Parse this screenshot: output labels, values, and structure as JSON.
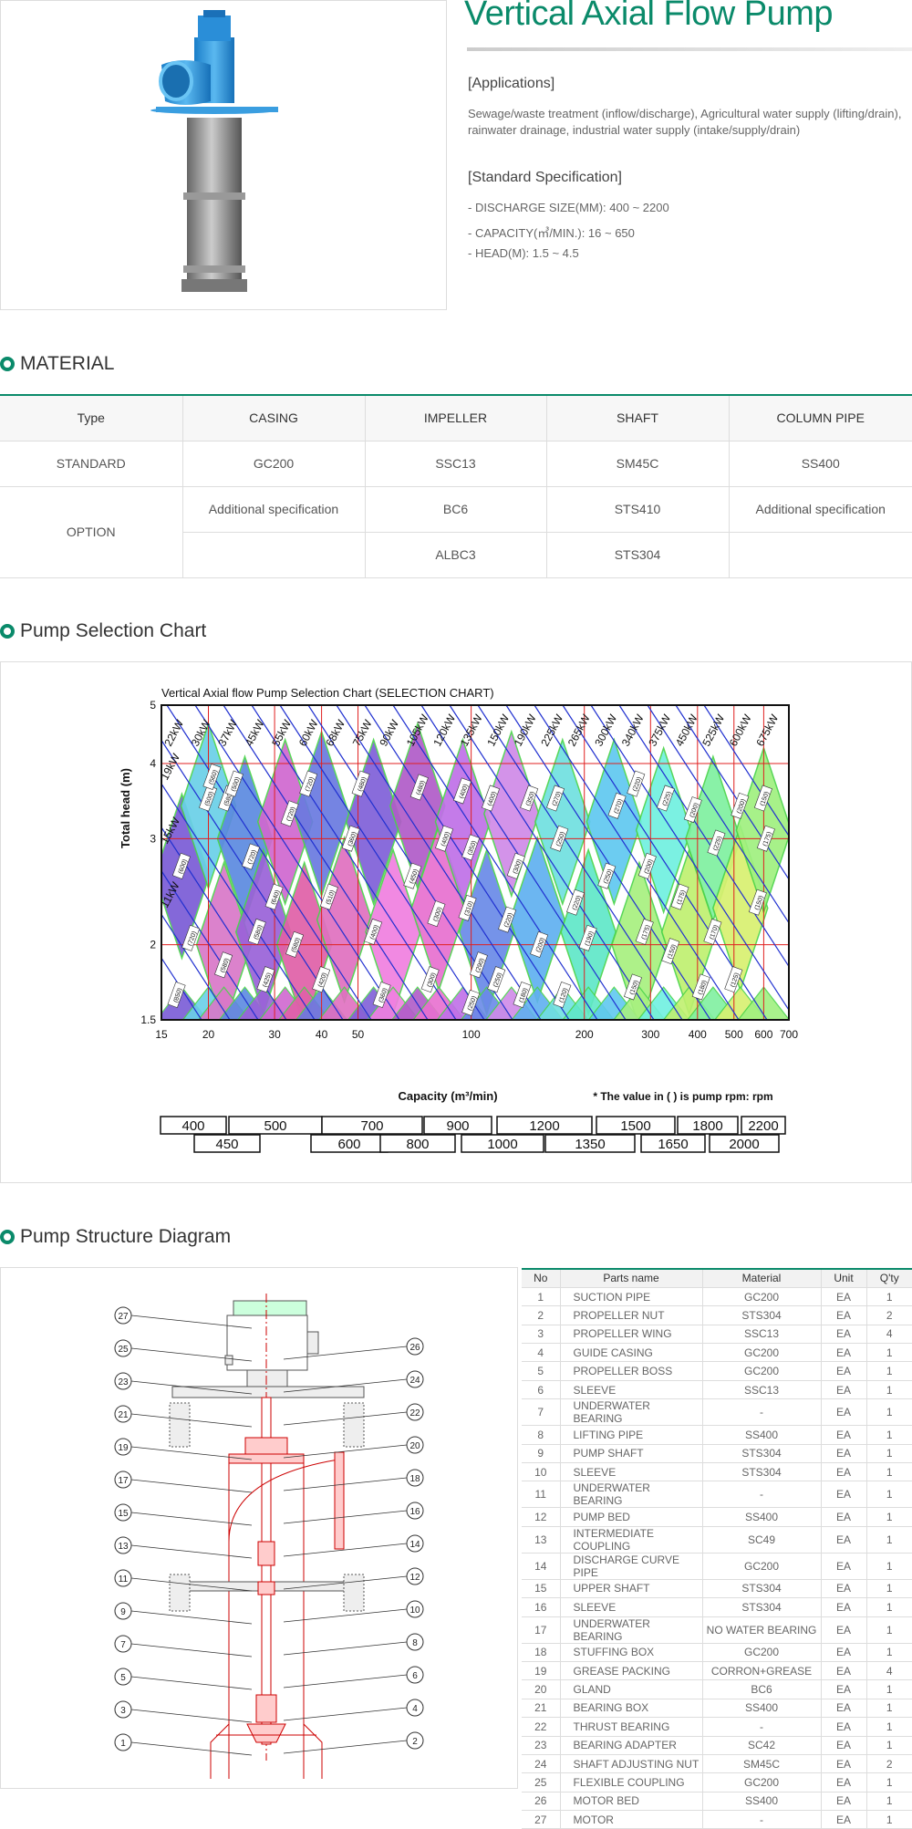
{
  "header": {
    "title": "Vertical Axial Flow Pump",
    "applications_heading": "[Applications]",
    "applications_text": "Sewage/waste treatment (inflow/discharge), Agricultural water supply (lifting/drain), rainwater drainage, industrial water supply (intake/supply/drain)",
    "standard_heading": "[Standard Specification]",
    "specs": [
      "- DISCHARGE SIZE(MM): 400 ~ 2200",
      "- CAPACITY(㎥/MIN.): 16 ~ 650",
      "- HEAD(M): 1.5 ~ 4.5"
    ]
  },
  "material": {
    "heading": "MATERIAL",
    "headers": [
      "Type",
      "CASING",
      "IMPELLER",
      "SHAFT",
      "COLUMN PIPE"
    ],
    "standard_row": [
      "STANDARD",
      "GC200",
      "SSC13",
      "SM45C",
      "SS400"
    ],
    "option_label": "OPTION",
    "option_row1": [
      "Additional specification",
      "BC6",
      "STS410",
      "Additional specification"
    ],
    "option_row2": [
      "",
      "ALBC3",
      "STS304",
      ""
    ]
  },
  "chart_section": {
    "heading": "Pump Selection Chart"
  },
  "chart_data": {
    "type": "area",
    "title": "Vertical Axial flow Pump Selection Chart (SELECTION CHART)",
    "xlabel": "Capacity (m³/min)",
    "ylabel": "Total head (m)",
    "note": "* The value in ( ) is pump rpm: rpm",
    "x_scale": "log",
    "y_scale": "log",
    "xlim": [
      15,
      700
    ],
    "ylim": [
      1.5,
      5
    ],
    "x_ticks": [
      15,
      20,
      30,
      40,
      50,
      100,
      200,
      300,
      400,
      500,
      600,
      700
    ],
    "y_ticks": [
      1.5,
      2,
      3,
      4,
      5
    ],
    "power_lines": [
      "11kW",
      "15kW",
      "19kW",
      "22kW",
      "30kW",
      "37kW",
      "45kW",
      "55kW",
      "60kW",
      "68kW",
      "75kW",
      "90kW",
      "105kW",
      "120kW",
      "135kW",
      "150kW",
      "190kW",
      "225kW",
      "265kW",
      "300kW",
      "340kW",
      "375kW",
      "450kW",
      "525kW",
      "600kW",
      "675kW"
    ],
    "sizes_row1": [
      "400",
      "500",
      "700",
      "900",
      "1200",
      "1500",
      "1800",
      "2200"
    ],
    "sizes_row2": [
      "450",
      "600",
      "800",
      "1000",
      "1350",
      "1650",
      "2000"
    ],
    "regions": [
      {
        "cx": 17,
        "cy": 2.6,
        "color": "#7a5cd6"
      },
      {
        "cx": 20,
        "cy": 3.4,
        "color": "#6ad0e8"
      },
      {
        "cx": 22,
        "cy": 2.0,
        "color": "#d978c8"
      },
      {
        "cx": 25,
        "cy": 3.0,
        "color": "#5c8ae0"
      },
      {
        "cx": 28,
        "cy": 2.1,
        "color": "#9a62d8"
      },
      {
        "cx": 32,
        "cy": 3.2,
        "color": "#d068d0"
      },
      {
        "cx": 36,
        "cy": 2.0,
        "color": "#e060a8"
      },
      {
        "cx": 40,
        "cy": 3.3,
        "color": "#6a7ae0"
      },
      {
        "cx": 46,
        "cy": 2.2,
        "color": "#e070c0"
      },
      {
        "cx": 55,
        "cy": 3.2,
        "color": "#8060d8"
      },
      {
        "cx": 62,
        "cy": 2.1,
        "color": "#f080e0"
      },
      {
        "cx": 72,
        "cy": 3.4,
        "color": "#b05cc8"
      },
      {
        "cx": 82,
        "cy": 2.3,
        "color": "#e870d0"
      },
      {
        "cx": 95,
        "cy": 3.2,
        "color": "#c070e8"
      },
      {
        "cx": 110,
        "cy": 2.1,
        "color": "#6a8ae8"
      },
      {
        "cx": 128,
        "cy": 3.3,
        "color": "#d08ae8"
      },
      {
        "cx": 150,
        "cy": 2.2,
        "color": "#60b0f0"
      },
      {
        "cx": 175,
        "cy": 3.2,
        "color": "#70e0e0"
      },
      {
        "cx": 205,
        "cy": 2.1,
        "color": "#60e8c8"
      },
      {
        "cx": 240,
        "cy": 3.2,
        "color": "#60c8f0"
      },
      {
        "cx": 280,
        "cy": 2.0,
        "color": "#a8f080"
      },
      {
        "cx": 325,
        "cy": 3.1,
        "color": "#70f0e0"
      },
      {
        "cx": 380,
        "cy": 2.1,
        "color": "#c0f070"
      },
      {
        "cx": 440,
        "cy": 3.0,
        "color": "#80f0a0"
      },
      {
        "cx": 520,
        "cy": 2.3,
        "color": "#d8f070"
      },
      {
        "cx": 600,
        "cy": 3.1,
        "color": "#a0f080"
      }
    ],
    "rpm_labels": [
      {
        "x": 16.5,
        "y": 1.65,
        "t": "(850)"
      },
      {
        "x": 18,
        "y": 2.05,
        "t": "(720)"
      },
      {
        "x": 17,
        "y": 2.7,
        "t": "(600)"
      },
      {
        "x": 20,
        "y": 3.5,
        "t": "(500)"
      },
      {
        "x": 20.5,
        "y": 3.8,
        "t": "(560)"
      },
      {
        "x": 22.5,
        "y": 3.5,
        "t": "(580)"
      },
      {
        "x": 23.5,
        "y": 3.7,
        "t": "(500)"
      },
      {
        "x": 26,
        "y": 2.8,
        "t": "(720)"
      },
      {
        "x": 22,
        "y": 1.85,
        "t": "(580)"
      },
      {
        "x": 27,
        "y": 2.1,
        "t": "(580)"
      },
      {
        "x": 28.5,
        "y": 1.75,
        "t": "(425)"
      },
      {
        "x": 30,
        "y": 2.4,
        "t": "(640)"
      },
      {
        "x": 33,
        "y": 3.3,
        "t": "(720)"
      },
      {
        "x": 37,
        "y": 3.7,
        "t": "(720)"
      },
      {
        "x": 34,
        "y": 2.0,
        "t": "(580)"
      },
      {
        "x": 40,
        "y": 1.75,
        "t": "(420)"
      },
      {
        "x": 42,
        "y": 2.4,
        "t": "(510)"
      },
      {
        "x": 48,
        "y": 3.0,
        "t": "(360)"
      },
      {
        "x": 51,
        "y": 3.7,
        "t": "(480)"
      },
      {
        "x": 55,
        "y": 2.1,
        "t": "(400)"
      },
      {
        "x": 58,
        "y": 1.65,
        "t": "(360)"
      },
      {
        "x": 73,
        "y": 3.65,
        "t": "(480)"
      },
      {
        "x": 70,
        "y": 2.6,
        "t": "(450)"
      },
      {
        "x": 78,
        "y": 1.75,
        "t": "(300)"
      },
      {
        "x": 81,
        "y": 2.25,
        "t": "(300)"
      },
      {
        "x": 85,
        "y": 3.0,
        "t": "(400)"
      },
      {
        "x": 95,
        "y": 3.6,
        "t": "(400)"
      },
      {
        "x": 98,
        "y": 2.3,
        "t": "(310)"
      },
      {
        "x": 100,
        "y": 2.9,
        "t": "(350)"
      },
      {
        "x": 105,
        "y": 1.85,
        "t": "(290)"
      },
      {
        "x": 100,
        "y": 1.6,
        "t": "(250)"
      },
      {
        "x": 113,
        "y": 3.5,
        "t": "(400)"
      },
      {
        "x": 117,
        "y": 1.75,
        "t": "(250)"
      },
      {
        "x": 125,
        "y": 2.2,
        "t": "(220)"
      },
      {
        "x": 132,
        "y": 2.7,
        "t": "(300)"
      },
      {
        "x": 143,
        "y": 3.5,
        "t": "(350)"
      },
      {
        "x": 137,
        "y": 1.65,
        "t": "(180)"
      },
      {
        "x": 152,
        "y": 2.0,
        "t": "(200)"
      },
      {
        "x": 172,
        "y": 3.0,
        "t": "(250)"
      },
      {
        "x": 168,
        "y": 3.5,
        "t": "(270)"
      },
      {
        "x": 175,
        "y": 1.65,
        "t": "(120)"
      },
      {
        "x": 190,
        "y": 2.35,
        "t": "(220)"
      },
      {
        "x": 205,
        "y": 2.05,
        "t": "(190)"
      },
      {
        "x": 230,
        "y": 2.6,
        "t": "(250)"
      },
      {
        "x": 245,
        "y": 3.4,
        "t": "(270)"
      },
      {
        "x": 275,
        "y": 3.7,
        "t": "(220)"
      },
      {
        "x": 270,
        "y": 1.7,
        "t": "(150)"
      },
      {
        "x": 290,
        "y": 2.1,
        "t": "(175)"
      },
      {
        "x": 295,
        "y": 2.7,
        "t": "(200)"
      },
      {
        "x": 330,
        "y": 3.5,
        "t": "(225)"
      },
      {
        "x": 340,
        "y": 1.95,
        "t": "(150)"
      },
      {
        "x": 360,
        "y": 2.4,
        "t": "(175)"
      },
      {
        "x": 390,
        "y": 3.35,
        "t": "(200)"
      },
      {
        "x": 410,
        "y": 1.7,
        "t": "(180)"
      },
      {
        "x": 440,
        "y": 2.1,
        "t": "(170)"
      },
      {
        "x": 450,
        "y": 2.95,
        "t": "(225)"
      },
      {
        "x": 500,
        "y": 1.75,
        "t": "(125)"
      },
      {
        "x": 520,
        "y": 3.4,
        "t": "(200)"
      },
      {
        "x": 580,
        "y": 2.35,
        "t": "(150)"
      },
      {
        "x": 600,
        "y": 3.5,
        "t": "(150)"
      },
      {
        "x": 610,
        "y": 3.0,
        "t": "(175)"
      }
    ]
  },
  "structure": {
    "heading": "Pump Structure Diagram",
    "table_headers": [
      "No",
      "Parts name",
      "Material",
      "Unit",
      "Q'ty"
    ],
    "parts": [
      [
        "1",
        "SUCTION PIPE",
        "GC200",
        "EA",
        "1"
      ],
      [
        "2",
        "PROPELLER NUT",
        "STS304",
        "EA",
        "2"
      ],
      [
        "3",
        "PROPELLER WING",
        "SSC13",
        "EA",
        "4"
      ],
      [
        "4",
        "GUIDE CASING",
        "GC200",
        "EA",
        "1"
      ],
      [
        "5",
        "PROPELLER BOSS",
        "GC200",
        "EA",
        "1"
      ],
      [
        "6",
        "SLEEVE",
        "SSC13",
        "EA",
        "1"
      ],
      [
        "7",
        "UNDERWATER BEARING",
        "-",
        "EA",
        "1"
      ],
      [
        "8",
        "LIFTING PIPE",
        "SS400",
        "EA",
        "1"
      ],
      [
        "9",
        "PUMP SHAFT",
        "STS304",
        "EA",
        "1"
      ],
      [
        "10",
        "SLEEVE",
        "STS304",
        "EA",
        "1"
      ],
      [
        "11",
        "UNDERWATER BEARING",
        "-",
        "EA",
        "1"
      ],
      [
        "12",
        "PUMP BED",
        "SS400",
        "EA",
        "1"
      ],
      [
        "13",
        "INTERMEDIATE COUPLING",
        "SC49",
        "EA",
        "1"
      ],
      [
        "14",
        "DISCHARGE CURVE PIPE",
        "GC200",
        "EA",
        "1"
      ],
      [
        "15",
        "UPPER SHAFT",
        "STS304",
        "EA",
        "1"
      ],
      [
        "16",
        "SLEEVE",
        "STS304",
        "EA",
        "1"
      ],
      [
        "17",
        "UNDERWATER BEARING",
        "NO WATER BEARING",
        "EA",
        "1"
      ],
      [
        "18",
        "STUFFING BOX",
        "GC200",
        "EA",
        "1"
      ],
      [
        "19",
        "GREASE PACKING",
        "CORRON+GREASE",
        "EA",
        "4"
      ],
      [
        "20",
        "GLAND",
        "BC6",
        "EA",
        "1"
      ],
      [
        "21",
        "BEARING BOX",
        "SS400",
        "EA",
        "1"
      ],
      [
        "22",
        "THRUST BEARING",
        "-",
        "EA",
        "1"
      ],
      [
        "23",
        "BEARING ADAPTER",
        "SC42",
        "EA",
        "1"
      ],
      [
        "24",
        "SHAFT ADJUSTING NUT",
        "SM45C",
        "EA",
        "2"
      ],
      [
        "25",
        "FLEXIBLE COUPLING",
        "GC200",
        "EA",
        "1"
      ],
      [
        "26",
        "MOTOR BED",
        "SS400",
        "EA",
        "1"
      ],
      [
        "27",
        "MOTOR",
        "-",
        "EA",
        "1"
      ]
    ],
    "callouts_left": [
      "27",
      "25",
      "23",
      "21",
      "19",
      "17",
      "15",
      "13",
      "11",
      "9",
      "7",
      "5",
      "3",
      "1"
    ],
    "callouts_right": [
      "26",
      "24",
      "22",
      "20",
      "18",
      "16",
      "14",
      "12",
      "10",
      "8",
      "6",
      "4",
      "2"
    ]
  }
}
